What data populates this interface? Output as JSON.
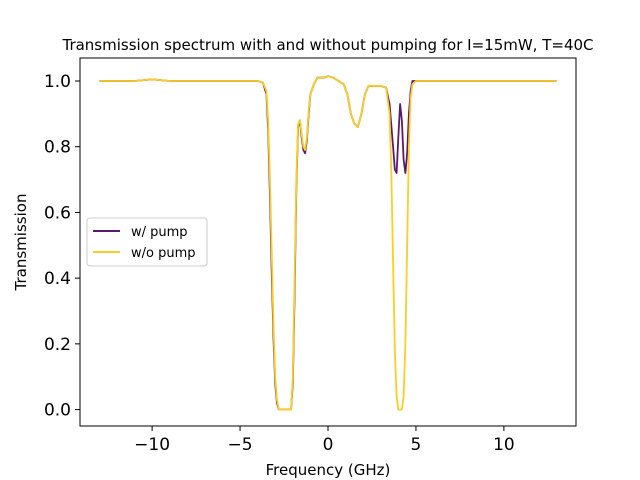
{
  "chart_data": {
    "type": "line",
    "title": "Transmission spectrum with and without pumping for I=15mW, T=40C",
    "xlabel": "Frequency (GHz)",
    "ylabel": "Transmission",
    "xlim": [
      -14.1,
      14.1
    ],
    "ylim": [
      -0.05,
      1.07
    ],
    "xticks": [
      -10,
      -5,
      0,
      5,
      10
    ],
    "xtick_labels": [
      "−10",
      "−5",
      "0",
      "5",
      "10"
    ],
    "yticks": [
      0.0,
      0.2,
      0.4,
      0.6,
      0.8,
      1.0
    ],
    "ytick_labels": [
      "0.0",
      "0.2",
      "0.4",
      "0.6",
      "0.8",
      "1.0"
    ],
    "grid": false,
    "legend_position": "center-left",
    "series": [
      {
        "name": "w/ pump",
        "color": "#5c1a6e",
        "x": [
          -13,
          -12,
          -11,
          -10,
          -9,
          -8,
          -7,
          -6,
          -5,
          -4.5,
          -4,
          -3.7,
          -3.5,
          -3.4,
          -3.3,
          -3.2,
          -3.1,
          -3.0,
          -2.9,
          -2.8,
          -2.7,
          -2.6,
          -2.5,
          -2.4,
          -2.3,
          -2.2,
          -2.1,
          -2.0,
          -1.9,
          -1.8,
          -1.7,
          -1.6,
          -1.5,
          -1.4,
          -1.3,
          -1.2,
          -1.1,
          -1.0,
          -0.8,
          -0.6,
          -0.4,
          -0.2,
          0,
          0.3,
          0.6,
          0.9,
          1.1,
          1.3,
          1.5,
          1.7,
          1.9,
          2.1,
          2.3,
          2.6,
          3.0,
          3.3,
          3.5,
          3.7,
          3.8,
          3.9,
          4.0,
          4.1,
          4.2,
          4.3,
          4.4,
          4.5,
          4.6,
          4.7,
          4.8,
          5.0,
          6,
          7,
          8,
          9,
          10,
          11,
          12,
          13
        ],
        "y": [
          1.0,
          1.0,
          1.0,
          1.005,
          1.0,
          1.0,
          1.0,
          1.0,
          1.0,
          1.0,
          1.0,
          0.995,
          0.96,
          0.85,
          0.65,
          0.42,
          0.22,
          0.08,
          0.02,
          0.0,
          0.0,
          0.0,
          0.0,
          0.0,
          0.0,
          0.0,
          0.0,
          0.08,
          0.35,
          0.68,
          0.86,
          0.88,
          0.83,
          0.79,
          0.78,
          0.82,
          0.9,
          0.96,
          0.99,
          1.01,
          1.01,
          1.01,
          1.015,
          1.01,
          1.0,
          0.99,
          0.96,
          0.9,
          0.87,
          0.86,
          0.9,
          0.96,
          0.985,
          0.985,
          0.985,
          0.98,
          0.93,
          0.8,
          0.73,
          0.72,
          0.83,
          0.93,
          0.88,
          0.76,
          0.72,
          0.78,
          0.9,
          0.97,
          1.0,
          1.0,
          1.0,
          1.0,
          1.0,
          1.0,
          1.0,
          1.0,
          1.0,
          1.0
        ]
      },
      {
        "name": "w/o pump",
        "color": "#fcce25",
        "x": [
          -13,
          -12,
          -11,
          -10,
          -9,
          -8,
          -7,
          -6,
          -5,
          -4.5,
          -4,
          -3.7,
          -3.5,
          -3.4,
          -3.3,
          -3.2,
          -3.1,
          -3.0,
          -2.9,
          -2.8,
          -2.7,
          -2.6,
          -2.5,
          -2.4,
          -2.3,
          -2.2,
          -2.1,
          -2.0,
          -1.9,
          -1.8,
          -1.7,
          -1.6,
          -1.5,
          -1.4,
          -1.3,
          -1.2,
          -1.1,
          -1.0,
          -0.8,
          -0.6,
          -0.4,
          -0.2,
          0,
          0.3,
          0.6,
          0.9,
          1.1,
          1.3,
          1.5,
          1.7,
          1.9,
          2.1,
          2.3,
          2.6,
          3.0,
          3.3,
          3.5,
          3.6,
          3.7,
          3.8,
          3.9,
          4.0,
          4.1,
          4.2,
          4.3,
          4.4,
          4.5,
          4.6,
          4.7,
          4.8,
          5.0,
          6,
          7,
          8,
          9,
          10,
          11,
          12,
          13
        ],
        "y": [
          1.0,
          1.0,
          1.0,
          1.005,
          1.0,
          1.0,
          1.0,
          1.0,
          1.0,
          1.0,
          1.0,
          0.995,
          0.97,
          0.88,
          0.7,
          0.48,
          0.26,
          0.1,
          0.03,
          0.0,
          0.0,
          0.0,
          0.0,
          0.0,
          0.0,
          0.0,
          0.0,
          0.1,
          0.4,
          0.7,
          0.87,
          0.88,
          0.84,
          0.8,
          0.79,
          0.83,
          0.91,
          0.96,
          0.99,
          1.01,
          1.01,
          1.01,
          1.015,
          1.01,
          1.0,
          0.99,
          0.96,
          0.9,
          0.87,
          0.86,
          0.9,
          0.96,
          0.985,
          0.985,
          0.985,
          0.98,
          0.9,
          0.72,
          0.45,
          0.18,
          0.04,
          0.0,
          0.0,
          0.0,
          0.04,
          0.2,
          0.5,
          0.8,
          0.95,
          0.99,
          1.0,
          1.0,
          1.0,
          1.0,
          1.0,
          1.0,
          1.0,
          1.0,
          1.0
        ]
      }
    ]
  }
}
